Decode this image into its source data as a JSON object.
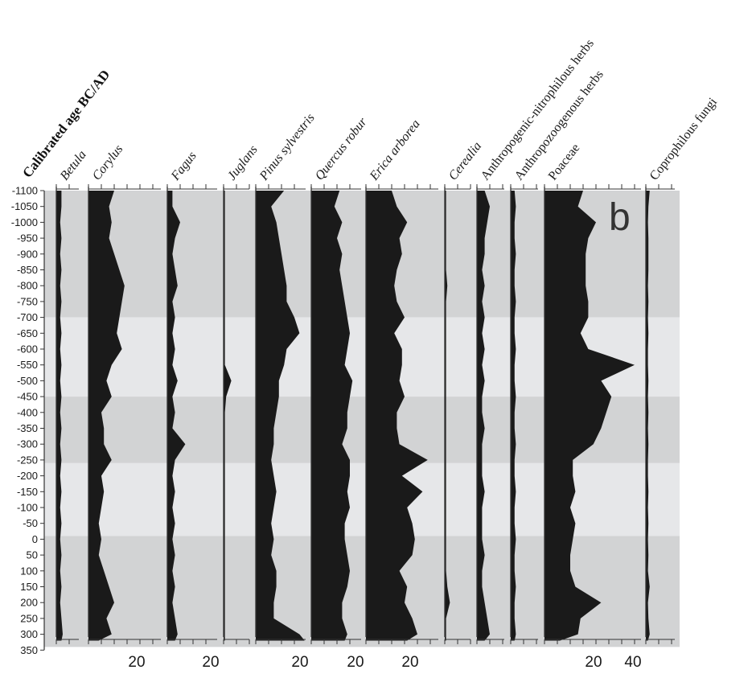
{
  "chart_data": {
    "type": "area",
    "panel_label": "b",
    "y_axis_title": "Calibrated age BC/AD",
    "y_ticks": [
      -1100,
      -1050,
      -1000,
      -950,
      -900,
      -850,
      -800,
      -750,
      -700,
      -650,
      -600,
      -550,
      -500,
      -450,
      -400,
      -350,
      -300,
      -250,
      -200,
      -150,
      -100,
      -50,
      0,
      50,
      100,
      150,
      200,
      250,
      300,
      350
    ],
    "ylim": [
      -1100,
      350
    ],
    "zones": [
      {
        "from": -1100,
        "to": -700,
        "shade": "dark"
      },
      {
        "from": -700,
        "to": -450,
        "shade": "light"
      },
      {
        "from": -450,
        "to": -240,
        "shade": "dark"
      },
      {
        "from": -240,
        "to": -10,
        "shade": "light"
      },
      {
        "from": -10,
        "to": 340,
        "shade": "dark"
      }
    ],
    "ages": [
      -1100,
      -1050,
      -1000,
      -950,
      -900,
      -850,
      -800,
      -750,
      -700,
      -650,
      -600,
      -550,
      -500,
      -450,
      -400,
      -350,
      -300,
      -250,
      -200,
      -150,
      -100,
      -50,
      0,
      50,
      100,
      150,
      200,
      250,
      300,
      320
    ],
    "series": [
      {
        "name": "Betula",
        "italic": true,
        "values": [
          2,
          2,
          1.5,
          2,
          1.5,
          2,
          1.5,
          2,
          1.5,
          2,
          1.5,
          2,
          1.5,
          2,
          1.5,
          2,
          1.5,
          2,
          1.5,
          2,
          1.5,
          2,
          1.5,
          2,
          1.5,
          2,
          1.5,
          2,
          2.5,
          2
        ]
      },
      {
        "name": "Corylus",
        "italic": true,
        "values": [
          10,
          8,
          9,
          8,
          10,
          12,
          14,
          13,
          12,
          11,
          13,
          9,
          7,
          9,
          5,
          6,
          6,
          9,
          5,
          6,
          5,
          4,
          5,
          4,
          6,
          8,
          10,
          7,
          9,
          4
        ]
      },
      {
        "name": "Fagus",
        "italic": true,
        "values": [
          2,
          2,
          5,
          3,
          2,
          3,
          4,
          2,
          3,
          2,
          3,
          2,
          4,
          2,
          3,
          2,
          7,
          3,
          2,
          3,
          2,
          3,
          2,
          3,
          2,
          3,
          2,
          3,
          4,
          3
        ]
      },
      {
        "name": "Juglans",
        "italic": true,
        "values": [
          0.5,
          0.5,
          0.5,
          0.5,
          0.5,
          0.5,
          0.5,
          0.5,
          0.5,
          0.5,
          0.5,
          0.5,
          3,
          1,
          0.5,
          0.5,
          0.5,
          0.5,
          0.5,
          0.5,
          0.5,
          0.5,
          0.5,
          0.5,
          0.5,
          0.5,
          0.5,
          0.5,
          0.5,
          0.5
        ]
      },
      {
        "name": "Pinus sylvestris",
        "italic": true,
        "values": [
          11,
          6,
          8,
          9,
          10,
          11,
          12,
          12,
          15,
          17,
          12,
          11,
          9,
          9,
          8,
          7,
          7,
          6,
          7,
          8,
          7,
          6,
          7,
          6,
          8,
          8,
          7,
          7,
          17,
          19
        ]
      },
      {
        "name": "Quercus robur",
        "italic": true,
        "values": [
          11,
          9,
          12,
          10,
          12,
          11,
          12,
          13,
          14,
          15,
          14,
          13,
          16,
          15,
          14,
          14,
          12,
          15,
          15,
          14,
          15,
          13,
          13,
          14,
          15,
          14,
          12,
          12,
          14,
          13
        ]
      },
      {
        "name": "Erica arborea",
        "italic": true,
        "values": [
          10,
          12,
          16,
          13,
          14,
          12,
          11,
          12,
          15,
          11,
          14,
          14,
          13,
          15,
          12,
          12,
          13,
          24,
          14,
          22,
          16,
          18,
          19,
          18,
          13,
          16,
          15,
          18,
          20,
          16
        ]
      },
      {
        "name": "Cerealia",
        "italic": true,
        "values": [
          0.5,
          0.5,
          0.5,
          0.5,
          0.5,
          0.5,
          1,
          0.5,
          0.5,
          0.5,
          0.5,
          0.5,
          0.5,
          0.5,
          0.5,
          0.5,
          0.5,
          0.5,
          0.5,
          0.5,
          0.5,
          0.5,
          0.5,
          0.5,
          0.5,
          1,
          2,
          0.5,
          0.5,
          0.5
        ]
      },
      {
        "name": "Anthropogenic-nitrophilous herbs",
        "italic": false,
        "values": [
          3,
          5,
          4,
          3,
          3,
          2,
          3,
          2,
          3,
          2,
          3,
          2,
          3,
          2,
          2,
          3,
          2,
          2,
          2,
          3,
          2,
          2,
          2,
          3,
          2,
          2,
          3,
          4,
          5,
          3
        ]
      },
      {
        "name": "Anthropozoogenous herbs",
        "italic": false,
        "values": [
          1.5,
          2,
          1.5,
          1.5,
          2,
          1.5,
          1.5,
          2,
          1.5,
          1.5,
          2,
          1.5,
          1.5,
          2,
          1.5,
          1.5,
          2,
          1.5,
          1.5,
          2,
          1.5,
          1.5,
          2,
          1.5,
          1.5,
          2,
          1.5,
          1.5,
          2,
          1.5
        ]
      },
      {
        "name": "Poaceae",
        "italic": false,
        "values": [
          15,
          13,
          20,
          17,
          16,
          16,
          16,
          17,
          17,
          14,
          17,
          35,
          22,
          26,
          24,
          22,
          19,
          11,
          11,
          12,
          10,
          12,
          11,
          10,
          10,
          12,
          22,
          14,
          13,
          6
        ]
      },
      {
        "name": "Coprophilous fungi",
        "italic": false,
        "values": [
          1.5,
          1,
          0.8,
          1,
          1,
          1,
          0.8,
          1,
          0.8,
          1,
          0.8,
          0.8,
          1,
          0.8,
          1,
          0.8,
          1,
          0.8,
          0.8,
          1,
          0.8,
          1,
          0.8,
          1,
          0.8,
          1.5,
          0.8,
          1,
          1.5,
          0.8
        ]
      }
    ],
    "scale_labels": [
      {
        "series": "Corylus",
        "text": "20"
      },
      {
        "series": "Fagus",
        "text": "20"
      },
      {
        "series": "Pinus sylvestris",
        "text": "20"
      },
      {
        "series": "Quercus robur",
        "text": "20"
      },
      {
        "series": "Erica arborea",
        "text": "20"
      },
      {
        "series": "Poaceae",
        "text": "20"
      },
      {
        "series": "Poaceae",
        "text": "40"
      }
    ]
  },
  "colors": {
    "zone_dark": "#d2d3d4",
    "zone_light": "#e6e7e9",
    "curve_fill": "#1a1a1a",
    "axis": "#333333"
  }
}
